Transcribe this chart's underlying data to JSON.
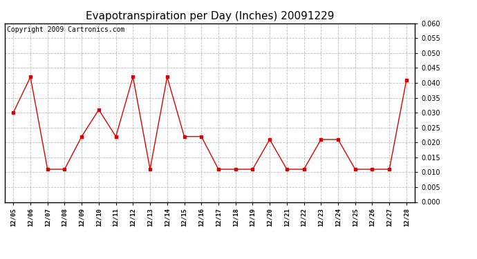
{
  "title": "Evapotranspiration per Day (Inches) 20091229",
  "copyright_text": "Copyright 2009 Cartronics.com",
  "x_labels": [
    "12/05",
    "12/06",
    "12/07",
    "12/08",
    "12/09",
    "12/10",
    "12/11",
    "12/12",
    "12/13",
    "12/14",
    "12/15",
    "12/16",
    "12/17",
    "12/18",
    "12/19",
    "12/20",
    "12/21",
    "12/22",
    "12/23",
    "12/24",
    "12/25",
    "12/26",
    "12/27",
    "12/28"
  ],
  "y_values": [
    0.03,
    0.042,
    0.011,
    0.011,
    0.022,
    0.031,
    0.022,
    0.042,
    0.011,
    0.042,
    0.022,
    0.022,
    0.011,
    0.011,
    0.011,
    0.021,
    0.011,
    0.011,
    0.021,
    0.021,
    0.011,
    0.011,
    0.011,
    0.041
  ],
  "line_color": "#dd0000",
  "marker_color": "#dd0000",
  "marker": "s",
  "marker_size": 3,
  "ylim": [
    0.0,
    0.06
  ],
  "ytick_interval": 0.005,
  "grid_color": "#bbbbbb",
  "bg_color": "#ffffff",
  "title_fontsize": 11,
  "copyright_fontsize": 7
}
